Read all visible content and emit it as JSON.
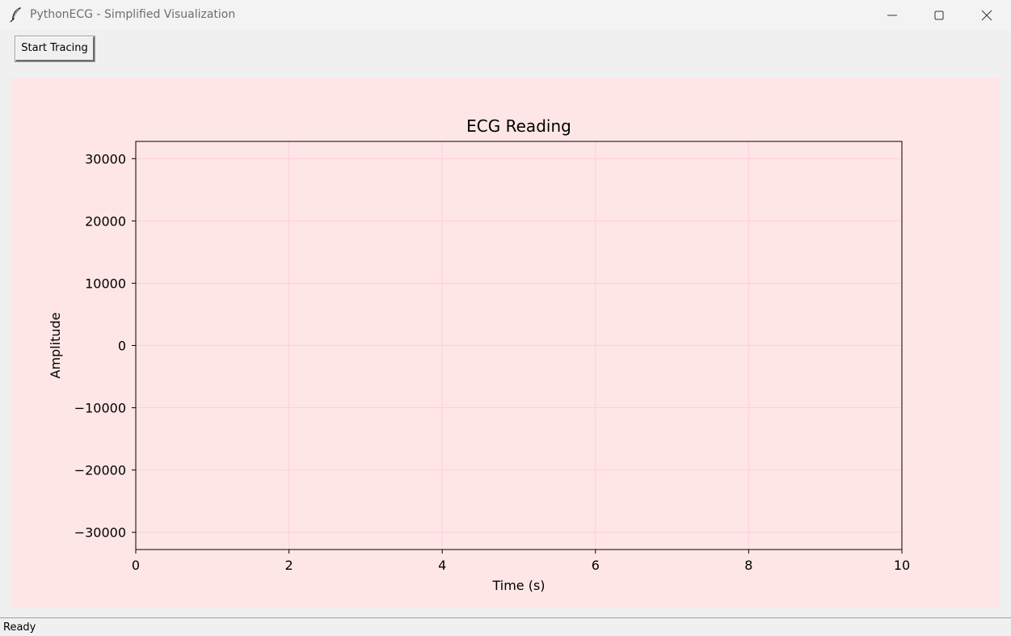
{
  "window": {
    "title": "PythonECG - Simplified Visualization",
    "icon": "feather-icon"
  },
  "toolbar": {
    "start_label": "Start Tracing"
  },
  "status": {
    "text": "Ready"
  },
  "colors": {
    "figure_background": "#ffe6e6",
    "grid": "#ffcce0",
    "axes": "#000000"
  },
  "chart_data": {
    "type": "line",
    "title": "ECG Reading",
    "xlabel": "Time (s)",
    "ylabel": "Amplitude",
    "xlim": [
      0,
      10
    ],
    "ylim": [
      -32768,
      32767
    ],
    "xticks": [
      0,
      2,
      4,
      6,
      8,
      10
    ],
    "xtick_labels": [
      "0",
      "2",
      "4",
      "6",
      "8",
      "10"
    ],
    "yticks": [
      30000,
      20000,
      10000,
      0,
      -10000,
      -20000,
      -30000
    ],
    "ytick_labels": [
      "30000",
      "20000",
      "10000",
      "0",
      "−10000",
      "−20000",
      "−30000"
    ],
    "grid": true,
    "series": [
      {
        "x": [],
        "values": []
      }
    ]
  }
}
